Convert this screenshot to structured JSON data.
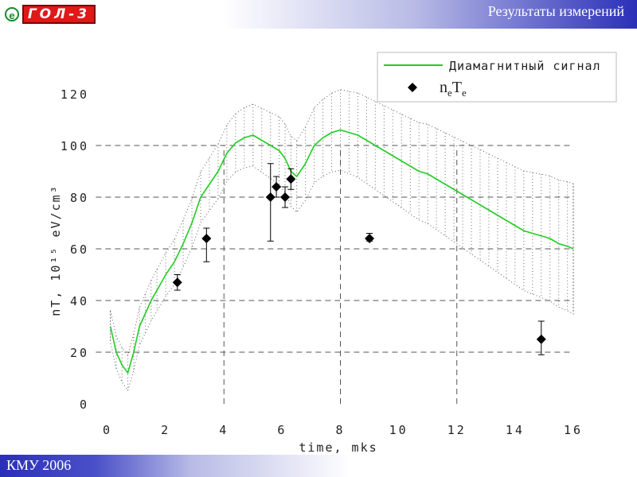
{
  "slide": {
    "title": "Результаты измерений",
    "footer": "КМУ 2006",
    "logo": {
      "badge": "e",
      "text": "ГОЛ-3"
    }
  },
  "chart_data": {
    "type": "line",
    "xlabel": "time, mks",
    "ylabel": "nT, 10¹⁵ eV/cm³",
    "xlim": [
      0,
      16
    ],
    "ylim": [
      0,
      120
    ],
    "xticks": [
      0,
      2,
      4,
      6,
      8,
      10,
      12,
      14,
      16
    ],
    "yticks": [
      0,
      20,
      40,
      60,
      80,
      100,
      120
    ],
    "grid": "dashed",
    "legend": "top-right",
    "colors": {
      "signal": "#22cc22",
      "band": "#333333",
      "points": "#000000"
    },
    "series": [
      {
        "name": "Диамагнитный сигнал",
        "type": "line",
        "x": [
          0.1,
          0.3,
          0.5,
          0.7,
          0.9,
          1.1,
          1.3,
          1.5,
          1.7,
          2.0,
          2.3,
          2.6,
          2.9,
          3.2,
          3.5,
          3.8,
          4.1,
          4.4,
          4.7,
          5.0,
          5.3,
          5.6,
          5.9,
          6.1,
          6.3,
          6.5,
          6.8,
          7.1,
          7.4,
          7.7,
          8.0,
          8.3,
          8.6,
          8.9,
          9.2,
          9.5,
          9.8,
          10.1,
          10.4,
          10.7,
          11.0,
          11.3,
          11.6,
          11.9,
          12.2,
          12.5,
          12.8,
          13.1,
          13.4,
          13.7,
          14.0,
          14.3,
          14.6,
          14.9,
          15.2,
          15.5,
          15.8,
          16.0
        ],
        "y": [
          30,
          20,
          15,
          12,
          20,
          30,
          35,
          40,
          44,
          50,
          55,
          62,
          70,
          80,
          85,
          90,
          97,
          101,
          103,
          104,
          102,
          100,
          98,
          95,
          90,
          88,
          93,
          100,
          103,
          105,
          106,
          105,
          104,
          102,
          100,
          98,
          96,
          94,
          92,
          90,
          89,
          87,
          85,
          83,
          81,
          79,
          77,
          75,
          73,
          71,
          69,
          67,
          66,
          65,
          64,
          62,
          61,
          60
        ]
      },
      {
        "name": "neTe",
        "type": "scatter",
        "x": [
          2.4,
          3.4,
          5.6,
          5.8,
          6.1,
          6.3,
          9.0,
          14.9
        ],
        "y": [
          47,
          64,
          80,
          84,
          80,
          87,
          64,
          25
        ],
        "err_low": [
          3,
          9,
          17,
          4,
          4,
          4,
          1,
          6
        ],
        "err_high": [
          3,
          4,
          13,
          4,
          4,
          4,
          2,
          7
        ]
      }
    ]
  }
}
